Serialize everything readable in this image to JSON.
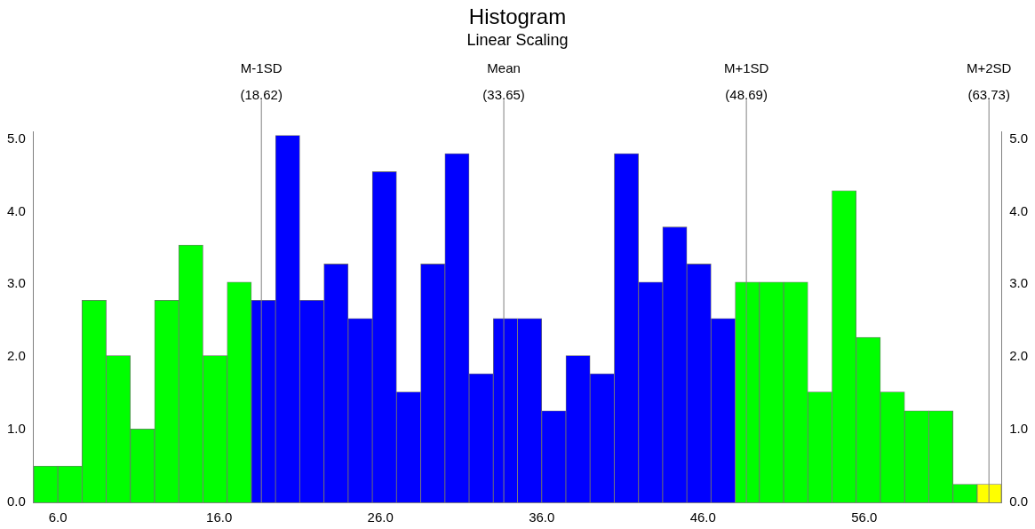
{
  "chart_data": {
    "type": "histogram",
    "title": "Histogram",
    "subtitle": "Linear Scaling",
    "bins": [
      4.5,
      6,
      7.5,
      9,
      10.5,
      12,
      13.5,
      15,
      16.5,
      18,
      19.5,
      21,
      22.5,
      24,
      25.5,
      27,
      28.5,
      30,
      31.5,
      33,
      34.5,
      36,
      37.5,
      39,
      40.5,
      42,
      43.5,
      45,
      46.5,
      48,
      49.5,
      51,
      52.5,
      54,
      55.5,
      57,
      58.5,
      60,
      61.5,
      63,
      64.5
    ],
    "values": [
      0.5,
      0.5,
      2.78,
      2.02,
      1.01,
      2.78,
      3.54,
      2.02,
      3.03,
      2.78,
      5.05,
      2.78,
      3.28,
      2.53,
      4.55,
      1.52,
      3.28,
      4.8,
      1.77,
      2.53,
      2.53,
      1.26,
      2.02,
      1.77,
      4.8,
      3.03,
      3.79,
      3.28,
      2.53,
      3.03,
      3.03,
      3.03,
      1.52,
      4.29,
      2.27,
      1.52,
      1.26,
      1.26,
      0.25,
      0.25
    ],
    "colors": [
      "#00ff00",
      "#00ff00",
      "#00ff00",
      "#00ff00",
      "#00ff00",
      "#00ff00",
      "#00ff00",
      "#00ff00",
      "#00ff00",
      "#0000ff",
      "#0000ff",
      "#0000ff",
      "#0000ff",
      "#0000ff",
      "#0000ff",
      "#0000ff",
      "#0000ff",
      "#0000ff",
      "#0000ff",
      "#0000ff",
      "#0000ff",
      "#0000ff",
      "#0000ff",
      "#0000ff",
      "#0000ff",
      "#0000ff",
      "#0000ff",
      "#0000ff",
      "#0000ff",
      "#00ff00",
      "#00ff00",
      "#00ff00",
      "#00ff00",
      "#00ff00",
      "#00ff00",
      "#00ff00",
      "#00ff00",
      "#00ff00",
      "#00ff00",
      "#ffff00"
    ],
    "xlim": [
      4.5,
      64.5
    ],
    "xticks": [
      {
        "value": 6,
        "label": "6.0"
      },
      {
        "value": 16,
        "label": "16.0"
      },
      {
        "value": 26,
        "label": "26.0"
      },
      {
        "value": 36,
        "label": "36.0"
      },
      {
        "value": 46,
        "label": "46.0"
      },
      {
        "value": 56,
        "label": "56.0"
      }
    ],
    "ylim": [
      0,
      5.1
    ],
    "yticks": [
      {
        "value": 0,
        "label": "0.0"
      },
      {
        "value": 1,
        "label": "1.0"
      },
      {
        "value": 2,
        "label": "2.0"
      },
      {
        "value": 3,
        "label": "3.0"
      },
      {
        "value": 4,
        "label": "4.0"
      },
      {
        "value": 5,
        "label": "5.0"
      }
    ],
    "y2lim": [
      0,
      5.1
    ],
    "y2ticks": [
      {
        "value": 0,
        "label": "0.0"
      },
      {
        "value": 1,
        "label": "1.0"
      },
      {
        "value": 2,
        "label": "2.0"
      },
      {
        "value": 3,
        "label": "3.0"
      },
      {
        "value": 4,
        "label": "4.0"
      },
      {
        "value": 5,
        "label": "5.0"
      }
    ],
    "ref_lines": [
      {
        "axis": "x",
        "value": 18.62,
        "label": "M-1SD (18.62)",
        "color": "#808080"
      },
      {
        "axis": "x",
        "value": 33.65,
        "label": "Mean (33.65)",
        "color": "#808080"
      },
      {
        "axis": "x",
        "value": 48.69,
        "label": "M+1SD (48.69)",
        "color": "#808080"
      },
      {
        "axis": "x",
        "value": 63.73,
        "label": "M+2SD (63.73)",
        "color": "#808080"
      }
    ],
    "grid": false,
    "legend": false
  }
}
